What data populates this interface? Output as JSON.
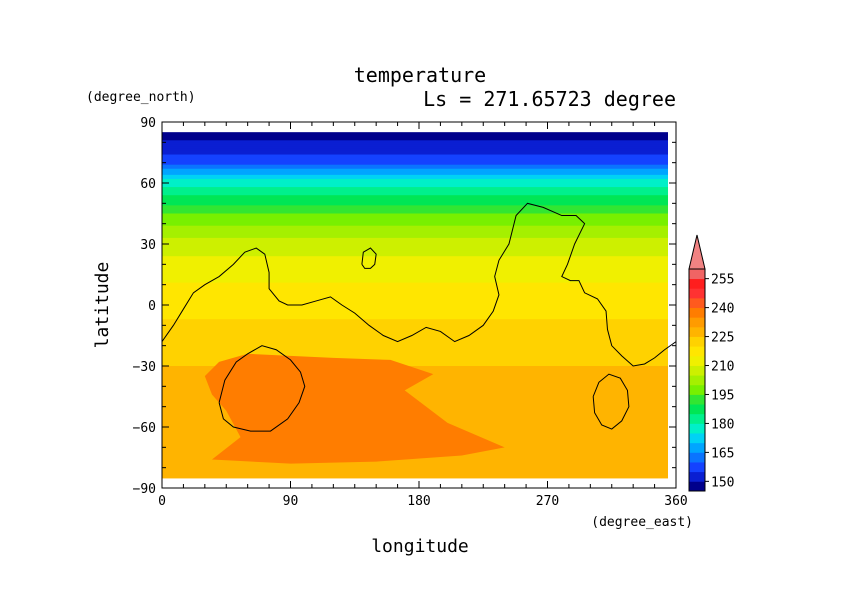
{
  "chart_data": {
    "type": "heatmap",
    "title": "temperature",
    "subtitle": "Ls = 271.65723 degree",
    "xlabel": "longitude",
    "ylabel": "latitude",
    "x_units": "(degree_east)",
    "y_units": "(degree_north)",
    "xlim": [
      0,
      360
    ],
    "ylim": [
      -90,
      90
    ],
    "data_extent_lat": [
      -85,
      85
    ],
    "xticks": [
      0,
      90,
      180,
      270,
      360
    ],
    "xtick_labels": [
      "0",
      "90",
      "180",
      "270",
      "360"
    ],
    "yticks": [
      -90,
      -60,
      -30,
      0,
      30,
      60,
      90
    ],
    "ytick_labels": [
      "−90",
      "−60",
      "−30",
      "0",
      "30",
      "60",
      "90"
    ],
    "colorbar": {
      "levels": [
        145,
        150,
        155,
        160,
        165,
        170,
        175,
        180,
        185,
        190,
        195,
        200,
        205,
        210,
        215,
        220,
        225,
        230,
        235,
        240,
        245,
        250,
        255,
        260
      ],
      "labels": [
        "150",
        "165",
        "180",
        "195",
        "210",
        "225",
        "240",
        "255"
      ],
      "label_values": [
        150,
        165,
        180,
        195,
        210,
        225,
        240,
        255
      ],
      "colors": [
        "#00008c",
        "#0a1fd2",
        "#1442ff",
        "#0a74ff",
        "#00a5ff",
        "#00d2f5",
        "#00f0c8",
        "#00f08c",
        "#00e655",
        "#32e632",
        "#78f000",
        "#a5f000",
        "#cdf000",
        "#f0f000",
        "#ffe600",
        "#ffd200",
        "#ffb400",
        "#ff9b00",
        "#ff7d00",
        "#ff5a1e",
        "#ff3232",
        "#ff1e1e",
        "#f06464",
        "#f08282"
      ]
    },
    "zonal_profile": [
      {
        "lat": 85,
        "temp": 147
      },
      {
        "lat": 70,
        "temp": 158
      },
      {
        "lat": 60,
        "temp": 178
      },
      {
        "lat": 45,
        "temp": 195
      },
      {
        "lat": 30,
        "temp": 207
      },
      {
        "lat": 15,
        "temp": 214
      },
      {
        "lat": 0,
        "temp": 218
      },
      {
        "lat": -15,
        "temp": 222
      },
      {
        "lat": -30,
        "temp": 225
      },
      {
        "lat": -45,
        "temp": 228
      },
      {
        "lat": -60,
        "temp": 229
      },
      {
        "lat": -75,
        "temp": 228
      },
      {
        "lat": -85,
        "temp": 227
      }
    ],
    "warm_region": {
      "level": 235,
      "outline": [
        [
          30,
          -35
        ],
        [
          40,
          -28
        ],
        [
          60,
          -24
        ],
        [
          90,
          -25
        ],
        [
          120,
          -26
        ],
        [
          160,
          -27
        ],
        [
          190,
          -34
        ],
        [
          170,
          -42
        ],
        [
          200,
          -58
        ],
        [
          240,
          -70
        ],
        [
          210,
          -74
        ],
        [
          150,
          -77
        ],
        [
          90,
          -78
        ],
        [
          35,
          -76
        ],
        [
          55,
          -65
        ],
        [
          45,
          -52
        ],
        [
          35,
          -44
        ]
      ]
    },
    "contours": [
      {
        "name": "coastline-main",
        "points": [
          [
            0,
            -18
          ],
          [
            8,
            -10
          ],
          [
            15,
            -2
          ],
          [
            22,
            6
          ],
          [
            30,
            10
          ],
          [
            40,
            14
          ],
          [
            50,
            20
          ],
          [
            58,
            26
          ],
          [
            66,
            28
          ],
          [
            72,
            25
          ],
          [
            75,
            16
          ],
          [
            75,
            8
          ],
          [
            82,
            2
          ],
          [
            88,
            0
          ],
          [
            98,
            0
          ],
          [
            108,
            2
          ],
          [
            118,
            4
          ],
          [
            126,
            0
          ],
          [
            135,
            -4
          ],
          [
            145,
            -10
          ],
          [
            155,
            -15
          ],
          [
            165,
            -18
          ],
          [
            175,
            -15
          ],
          [
            185,
            -11
          ],
          [
            195,
            -13
          ],
          [
            205,
            -18
          ],
          [
            215,
            -15
          ],
          [
            225,
            -10
          ],
          [
            232,
            -3
          ],
          [
            236,
            5
          ],
          [
            233,
            14
          ],
          [
            236,
            22
          ],
          [
            243,
            30
          ],
          [
            248,
            44
          ],
          [
            256,
            50
          ],
          [
            267,
            48
          ],
          [
            280,
            44
          ],
          [
            290,
            44
          ],
          [
            296,
            40
          ],
          [
            289,
            30
          ],
          [
            284,
            20
          ],
          [
            280,
            14
          ],
          [
            286,
            12
          ],
          [
            292,
            12
          ],
          [
            296,
            6
          ],
          [
            305,
            3
          ],
          [
            311,
            -3
          ],
          [
            312,
            -12
          ],
          [
            315,
            -20
          ],
          [
            322,
            -25
          ],
          [
            330,
            -30
          ],
          [
            338,
            -29
          ],
          [
            345,
            -26
          ],
          [
            352,
            -22
          ],
          [
            360,
            -18
          ]
        ]
      },
      {
        "name": "small-island",
        "points": [
          [
            140,
            20
          ],
          [
            141,
            26
          ],
          [
            146,
            28
          ],
          [
            150,
            25
          ],
          [
            149,
            20
          ],
          [
            146,
            18
          ],
          [
            142,
            18
          ],
          [
            140,
            20
          ]
        ]
      },
      {
        "name": "loop-west",
        "points": [
          [
            40,
            -48
          ],
          [
            44,
            -37
          ],
          [
            52,
            -28
          ],
          [
            60,
            -24
          ],
          [
            70,
            -20
          ],
          [
            80,
            -22
          ],
          [
            90,
            -27
          ],
          [
            97,
            -33
          ],
          [
            100,
            -40
          ],
          [
            96,
            -48
          ],
          [
            88,
            -56
          ],
          [
            76,
            -62
          ],
          [
            62,
            -62
          ],
          [
            50,
            -60
          ],
          [
            43,
            -56
          ],
          [
            40,
            -48
          ]
        ]
      },
      {
        "name": "loop-east",
        "points": [
          [
            302,
            -45
          ],
          [
            306,
            -38
          ],
          [
            313,
            -34
          ],
          [
            321,
            -36
          ],
          [
            326,
            -42
          ],
          [
            327,
            -50
          ],
          [
            322,
            -57
          ],
          [
            315,
            -61
          ],
          [
            308,
            -59
          ],
          [
            303,
            -53
          ],
          [
            302,
            -45
          ]
        ]
      }
    ]
  }
}
